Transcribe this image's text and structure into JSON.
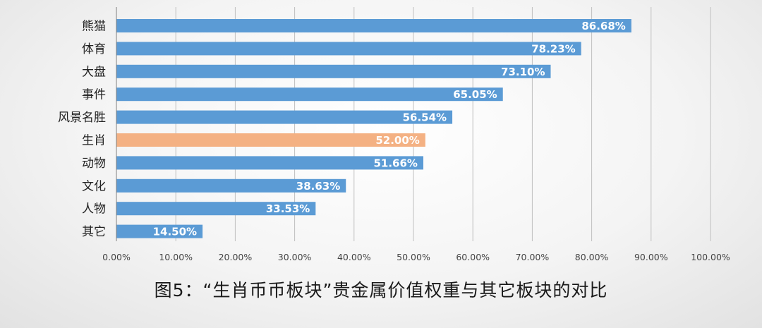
{
  "caption": "图5：“生肖币币板块”贵金属价值权重与其它板块的对比",
  "colors": {
    "bar": "#5b9bd5",
    "highlight": "#f4b183",
    "grid": "#bfbfbf",
    "axis": "#7f7f7f"
  },
  "chart_data": {
    "type": "bar",
    "orientation": "horizontal",
    "title": "",
    "xlabel": "",
    "ylabel": "",
    "categories": [
      "熊猫",
      "体育",
      "大盘",
      "事件",
      "风景名胜",
      "生肖",
      "动物",
      "文化",
      "人物",
      "其它"
    ],
    "values": [
      86.68,
      78.23,
      73.1,
      65.05,
      56.54,
      52.0,
      51.66,
      38.63,
      33.53,
      14.5
    ],
    "value_labels": [
      "86.68%",
      "78.23%",
      "73.10%",
      "65.05%",
      "56.54%",
      "52.00%",
      "51.66%",
      "38.63%",
      "33.53%",
      "14.50%"
    ],
    "highlight_category": "生肖",
    "xlim": [
      0,
      100
    ],
    "x_ticks": [
      0,
      10,
      20,
      30,
      40,
      50,
      60,
      70,
      80,
      90,
      100
    ],
    "x_tick_labels": [
      "0.00%",
      "10.00%",
      "20.00%",
      "30.00%",
      "40.00%",
      "50.00%",
      "60.00%",
      "70.00%",
      "80.00%",
      "90.00%",
      "100.00%"
    ],
    "grid": true,
    "legend": "none"
  }
}
